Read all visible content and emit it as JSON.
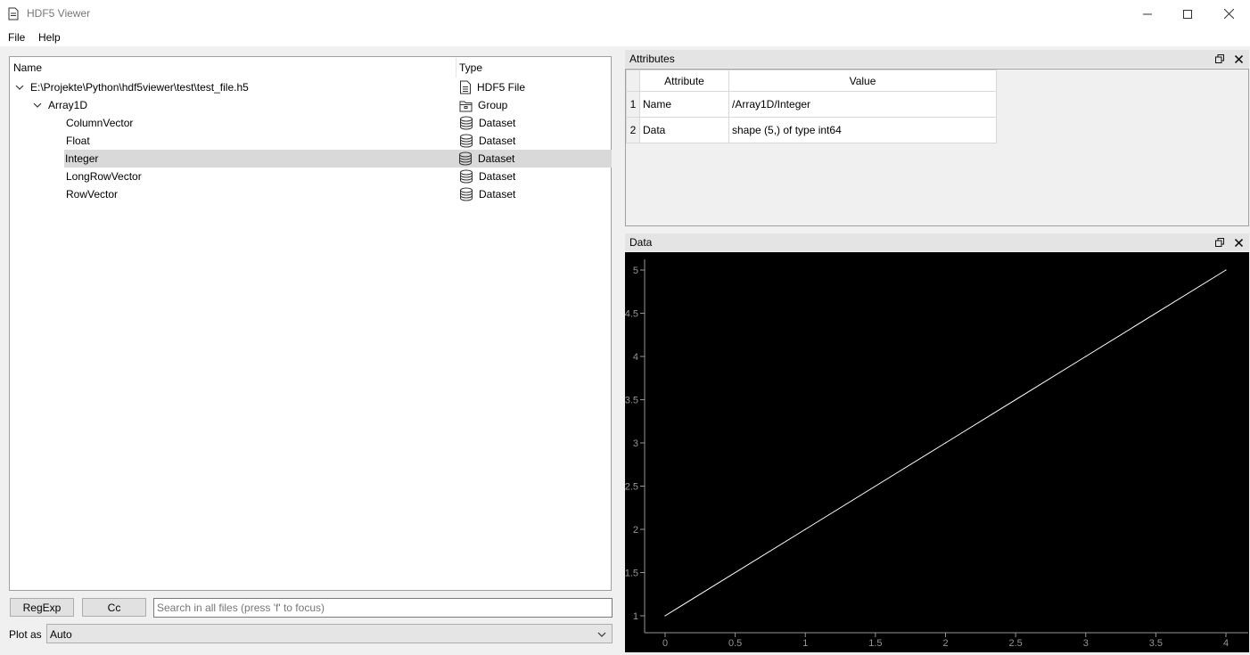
{
  "window": {
    "title": "HDF5 Viewer"
  },
  "menu": {
    "file": "File",
    "help": "Help"
  },
  "tree": {
    "columns": {
      "name": "Name",
      "type": "Type"
    },
    "rows": [
      {
        "name": "E:\\Projekte\\Python\\hdf5viewer\\test\\test_file.h5",
        "type": "HDF5 File",
        "icon": "file-icon",
        "depth": 0,
        "expanded": true
      },
      {
        "name": "Array1D",
        "type": "Group",
        "icon": "folder-icon",
        "depth": 1,
        "expanded": true
      },
      {
        "name": "ColumnVector",
        "type": "Dataset",
        "icon": "database-icon",
        "depth": 2
      },
      {
        "name": "Float",
        "type": "Dataset",
        "icon": "database-icon",
        "depth": 2
      },
      {
        "name": "Integer",
        "type": "Dataset",
        "icon": "database-icon",
        "depth": 2,
        "selected": true
      },
      {
        "name": "LongRowVector",
        "type": "Dataset",
        "icon": "database-icon",
        "depth": 2
      },
      {
        "name": "RowVector",
        "type": "Dataset",
        "icon": "database-icon",
        "depth": 2
      }
    ]
  },
  "controls": {
    "regexp": "RegExp",
    "case": "Cc",
    "search_placeholder": "Search in all files (press 'f' to focus)",
    "plot_as_label": "Plot as",
    "plot_as_value": "Auto"
  },
  "attributes": {
    "title": "Attributes",
    "headers": [
      "Attribute",
      "Value"
    ],
    "rows": [
      {
        "index": "1",
        "attribute": "Name",
        "value": "/Array1D/Integer"
      },
      {
        "index": "2",
        "attribute": "Data",
        "value": "shape (5,) of type int64"
      }
    ]
  },
  "data_dock": {
    "title": "Data"
  },
  "chart_data": {
    "type": "line",
    "x": [
      0,
      1,
      2,
      3,
      4
    ],
    "y": [
      1,
      2,
      3,
      4,
      5
    ],
    "xlim": [
      0,
      4
    ],
    "ylim": [
      1,
      5
    ],
    "xticks": [
      "0",
      "0.5",
      "1",
      "1.5",
      "2",
      "2.5",
      "3",
      "3.5",
      "4"
    ],
    "yticks": [
      "1",
      "1.5",
      "2",
      "2.5",
      "3",
      "3.5",
      "4",
      "4.5",
      "5"
    ],
    "line_color": "#ffffff",
    "background": "#000000",
    "grid": false
  }
}
